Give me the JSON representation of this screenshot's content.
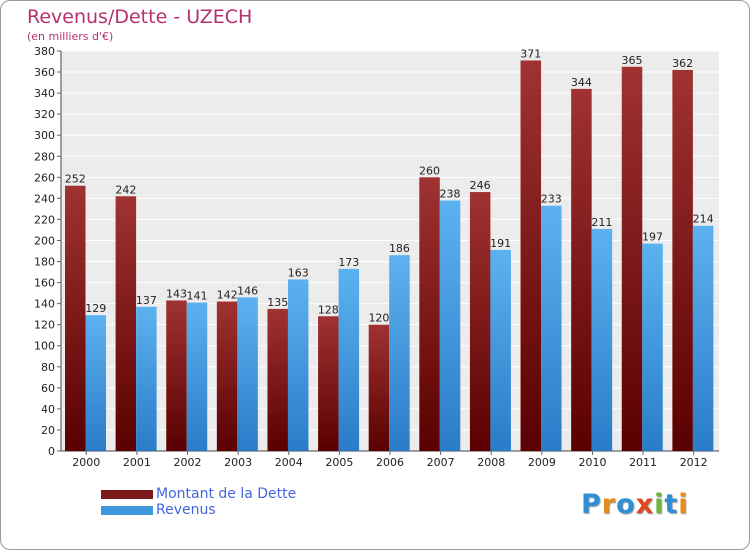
{
  "chart_data": {
    "type": "bar",
    "title": "Revenus/Dette - UZECH",
    "subtitle": "(en milliers d'€)",
    "categories": [
      "2000",
      "2001",
      "2002",
      "2003",
      "2004",
      "2005",
      "2006",
      "2007",
      "2008",
      "2009",
      "2010",
      "2011",
      "2012"
    ],
    "series": [
      {
        "name": "Montant de la Dette",
        "color": "#7a1a1a",
        "values": [
          252,
          242,
          143,
          142,
          135,
          128,
          120,
          260,
          246,
          371,
          344,
          365,
          362
        ]
      },
      {
        "name": "Revenus",
        "color": "#3f97dd",
        "values": [
          129,
          137,
          141,
          146,
          163,
          173,
          186,
          238,
          191,
          233,
          211,
          197,
          214
        ]
      }
    ],
    "ylim": [
      0,
      380
    ],
    "ytick_step": 20,
    "grid": true,
    "legend_position": "bottom-left"
  },
  "logo": {
    "letters": [
      {
        "ch": "P",
        "color": "#2e8fd6"
      },
      {
        "ch": "r",
        "color": "#e58c1c"
      },
      {
        "ch": "o",
        "color": "#2e8fd6"
      },
      {
        "ch": "x",
        "color": "#e5441c"
      },
      {
        "ch": "i",
        "color": "#6cb33f"
      },
      {
        "ch": "t",
        "color": "#2e8fd6"
      },
      {
        "ch": "i",
        "color": "#e58c1c"
      }
    ]
  }
}
